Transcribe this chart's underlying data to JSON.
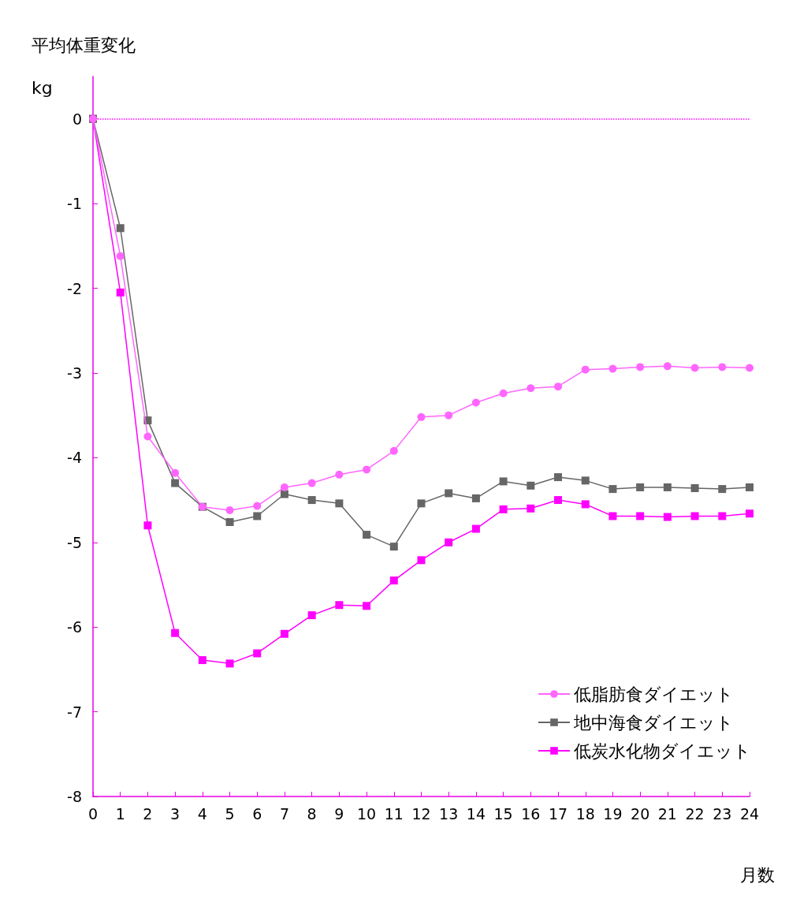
{
  "chart_data": {
    "type": "line",
    "ylabel": "平均体重変化\nkg",
    "xlabel": "月数",
    "x": [
      0,
      1,
      2,
      3,
      4,
      5,
      6,
      7,
      8,
      9,
      10,
      11,
      12,
      13,
      14,
      15,
      16,
      17,
      18,
      19,
      20,
      21,
      22,
      23,
      24
    ],
    "series": [
      {
        "name": "低脂肪食ダイエット",
        "color": "#ff66ff",
        "marker": "circle",
        "values": [
          0,
          -1.62,
          -3.75,
          -4.18,
          -4.58,
          -4.62,
          -4.57,
          -4.35,
          -4.3,
          -4.2,
          -4.14,
          -3.92,
          -3.52,
          -3.5,
          -3.35,
          -3.24,
          -3.18,
          -3.16,
          -2.96,
          -2.95,
          -2.93,
          -2.92,
          -2.94,
          -2.93,
          -2.94
        ]
      },
      {
        "name": "地中海食ダイエット",
        "color": "#666666",
        "marker": "square",
        "values": [
          0,
          -1.29,
          -3.56,
          -4.3,
          -4.58,
          -4.76,
          -4.69,
          -4.43,
          -4.5,
          -4.54,
          -4.91,
          -5.05,
          -4.54,
          -4.42,
          -4.48,
          -4.28,
          -4.33,
          -4.23,
          -4.27,
          -4.37,
          -4.35,
          -4.35,
          -4.36,
          -4.37,
          -4.35
        ]
      },
      {
        "name": "低炭水化物ダイエット",
        "color": "#ff00ff",
        "marker": "square",
        "values": [
          0,
          -2.05,
          -4.8,
          -6.07,
          -6.39,
          -6.43,
          -6.31,
          -6.08,
          -5.86,
          -5.74,
          -5.75,
          -5.45,
          -5.21,
          -5.0,
          -4.84,
          -4.61,
          -4.6,
          -4.5,
          -4.55,
          -4.69,
          -4.69,
          -4.7,
          -4.69,
          -4.69,
          -4.66
        ]
      }
    ],
    "xlim": [
      0,
      24
    ],
    "xticks": [
      0,
      1,
      2,
      3,
      4,
      5,
      6,
      7,
      8,
      9,
      10,
      11,
      12,
      13,
      14,
      15,
      16,
      17,
      18,
      19,
      20,
      21,
      22,
      23,
      24
    ],
    "ylim": [
      -8,
      0.5
    ],
    "yticks": [
      -8,
      -7,
      -6,
      -5,
      -4,
      -3,
      -2,
      -1,
      0
    ],
    "ref_lines": [
      {
        "axis": "y",
        "value": 0,
        "color": "#ff00ff",
        "line_style": "dotted"
      }
    ],
    "grid": false,
    "legend": "bottom right",
    "line_style": "solid"
  }
}
